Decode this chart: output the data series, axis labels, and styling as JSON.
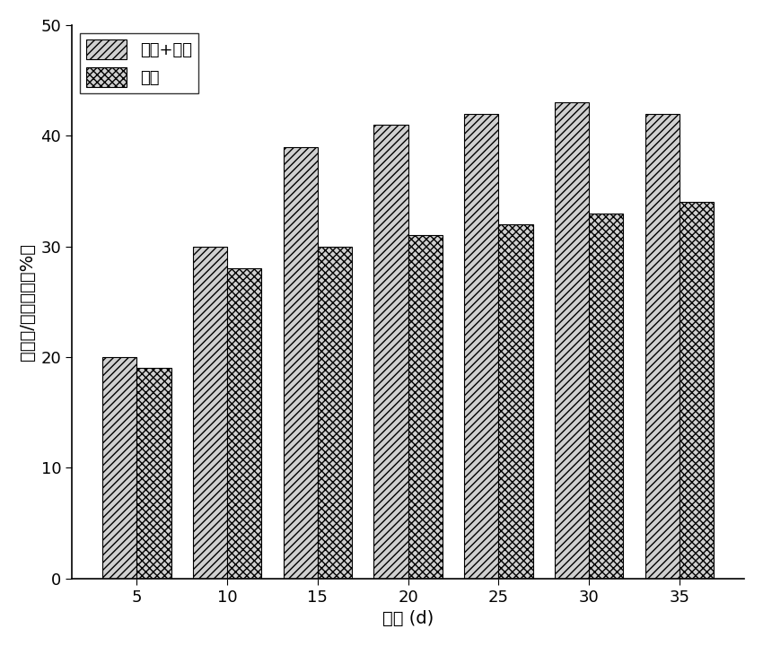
{
  "categories": [
    5,
    10,
    15,
    20,
    25,
    30,
    35
  ],
  "series1_label": "底泥+尾菜",
  "series2_label": "尾菜",
  "series1_values": [
    20.0,
    30.0,
    39.0,
    41.0,
    42.0,
    43.0,
    42.0
  ],
  "series2_values": [
    19.0,
    28.0,
    30.0,
    31.0,
    32.0,
    33.0,
    34.0
  ],
  "series1_hatch": "////",
  "series2_hatch": "xxxx",
  "bar_facecolor": "#d0d0d0",
  "bar_edgecolor": "#000000",
  "ylim": [
    0,
    50
  ],
  "yticks": [
    0,
    10,
    20,
    30,
    40,
    50
  ],
  "xlabel": "时间 (d)",
  "ylabel": "腐殖酸/总有机碘（%）",
  "bar_width": 0.38,
  "legend_loc": "upper left",
  "axis_fontsize": 14,
  "tick_fontsize": 13,
  "legend_fontsize": 13,
  "background_color": "#ffffff",
  "grid": false
}
